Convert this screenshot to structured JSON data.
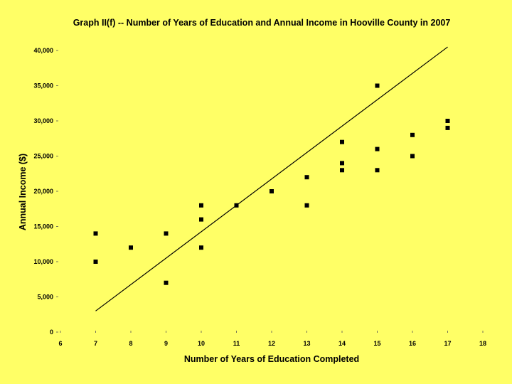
{
  "colors": {
    "background": "#ffff66",
    "marker": "#000000",
    "trendline": "#000000"
  },
  "chart_data": {
    "type": "scatter",
    "title": "Graph II(f) -- Number of Years of Education and Annual Income in Hooville County in 2007",
    "xlabel": "Number of Years of Education Completed",
    "ylabel": "Annual Income ($)",
    "xlim": [
      6,
      18
    ],
    "ylim": [
      0,
      40000
    ],
    "x_ticks": [
      "6",
      "7",
      "8",
      "9",
      "10",
      "11",
      "12",
      "13",
      "14",
      "15",
      "16",
      "17",
      "18"
    ],
    "y_ticks": [
      "0",
      "5,000",
      "10,000",
      "15,000",
      "20,000",
      "25,000",
      "30,000",
      "35,000",
      "40,000"
    ],
    "grid": false,
    "legend": "none",
    "marker": "square",
    "points": [
      {
        "x": 7,
        "y": 14000
      },
      {
        "x": 7,
        "y": 10000
      },
      {
        "x": 8,
        "y": 12000
      },
      {
        "x": 9,
        "y": 14000
      },
      {
        "x": 9,
        "y": 7000
      },
      {
        "x": 10,
        "y": 18000
      },
      {
        "x": 10,
        "y": 16000
      },
      {
        "x": 10,
        "y": 12000
      },
      {
        "x": 11,
        "y": 18000
      },
      {
        "x": 12,
        "y": 20000
      },
      {
        "x": 13,
        "y": 22000
      },
      {
        "x": 13,
        "y": 18000
      },
      {
        "x": 14,
        "y": 27000
      },
      {
        "x": 14,
        "y": 24000
      },
      {
        "x": 14,
        "y": 23000
      },
      {
        "x": 15,
        "y": 35000
      },
      {
        "x": 15,
        "y": 26000
      },
      {
        "x": 15,
        "y": 23000
      },
      {
        "x": 16,
        "y": 28000
      },
      {
        "x": 16,
        "y": 25000
      },
      {
        "x": 17,
        "y": 30000
      },
      {
        "x": 17,
        "y": 29000
      }
    ],
    "trendline": {
      "x_start": 7,
      "y_start": 3000,
      "x_end": 17,
      "y_end": 40500
    }
  }
}
